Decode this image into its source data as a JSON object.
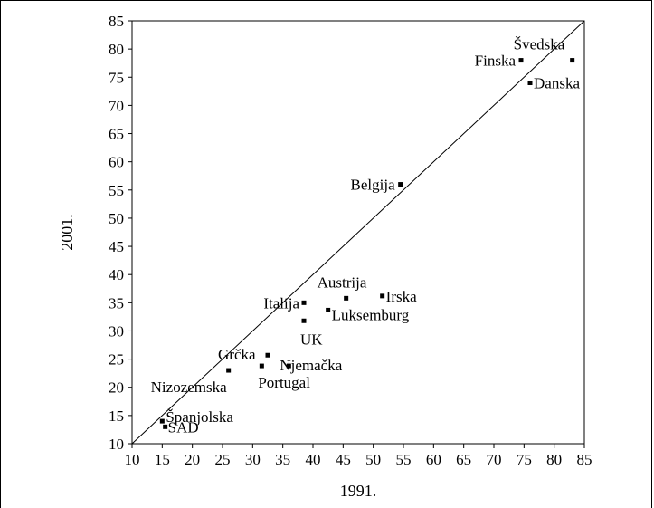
{
  "chart_data": {
    "type": "scatter",
    "title": "",
    "xlabel": "1991.",
    "ylabel": "2001.",
    "xlim": [
      10,
      85
    ],
    "ylim": [
      10,
      85
    ],
    "xticks": [
      10,
      15,
      20,
      25,
      30,
      35,
      40,
      45,
      50,
      55,
      60,
      65,
      70,
      75,
      80,
      85
    ],
    "yticks": [
      10,
      15,
      20,
      25,
      30,
      35,
      40,
      45,
      50,
      55,
      60,
      65,
      70,
      75,
      80,
      85
    ],
    "diagonal_line": true,
    "grid": false,
    "points": [
      {
        "label": "Švedska",
        "x": 83,
        "y": 78
      },
      {
        "label": "Finska",
        "x": 74.5,
        "y": 78
      },
      {
        "label": "Danska",
        "x": 76,
        "y": 74
      },
      {
        "label": "Belgija",
        "x": 54.5,
        "y": 56
      },
      {
        "label": "Austrija",
        "x": 45.5,
        "y": 35.8
      },
      {
        "label": "Irska",
        "x": 51.5,
        "y": 36.2
      },
      {
        "label": "Italija",
        "x": 38.5,
        "y": 35
      },
      {
        "label": "Luksemburg",
        "x": 42.5,
        "y": 33.7
      },
      {
        "label": "UK",
        "x": 38.5,
        "y": 31.8
      },
      {
        "label": "Grčka",
        "x": 32.5,
        "y": 25.7
      },
      {
        "label": "Njemačka",
        "x": 36,
        "y": 23.8
      },
      {
        "label": "Portugal",
        "x": 31.5,
        "y": 23.8
      },
      {
        "label": "Nizozemska",
        "x": 26,
        "y": 23
      },
      {
        "label": "Španjolska",
        "x": 15,
        "y": 14
      },
      {
        "label": "SAD",
        "x": 15.5,
        "y": 13
      }
    ]
  }
}
